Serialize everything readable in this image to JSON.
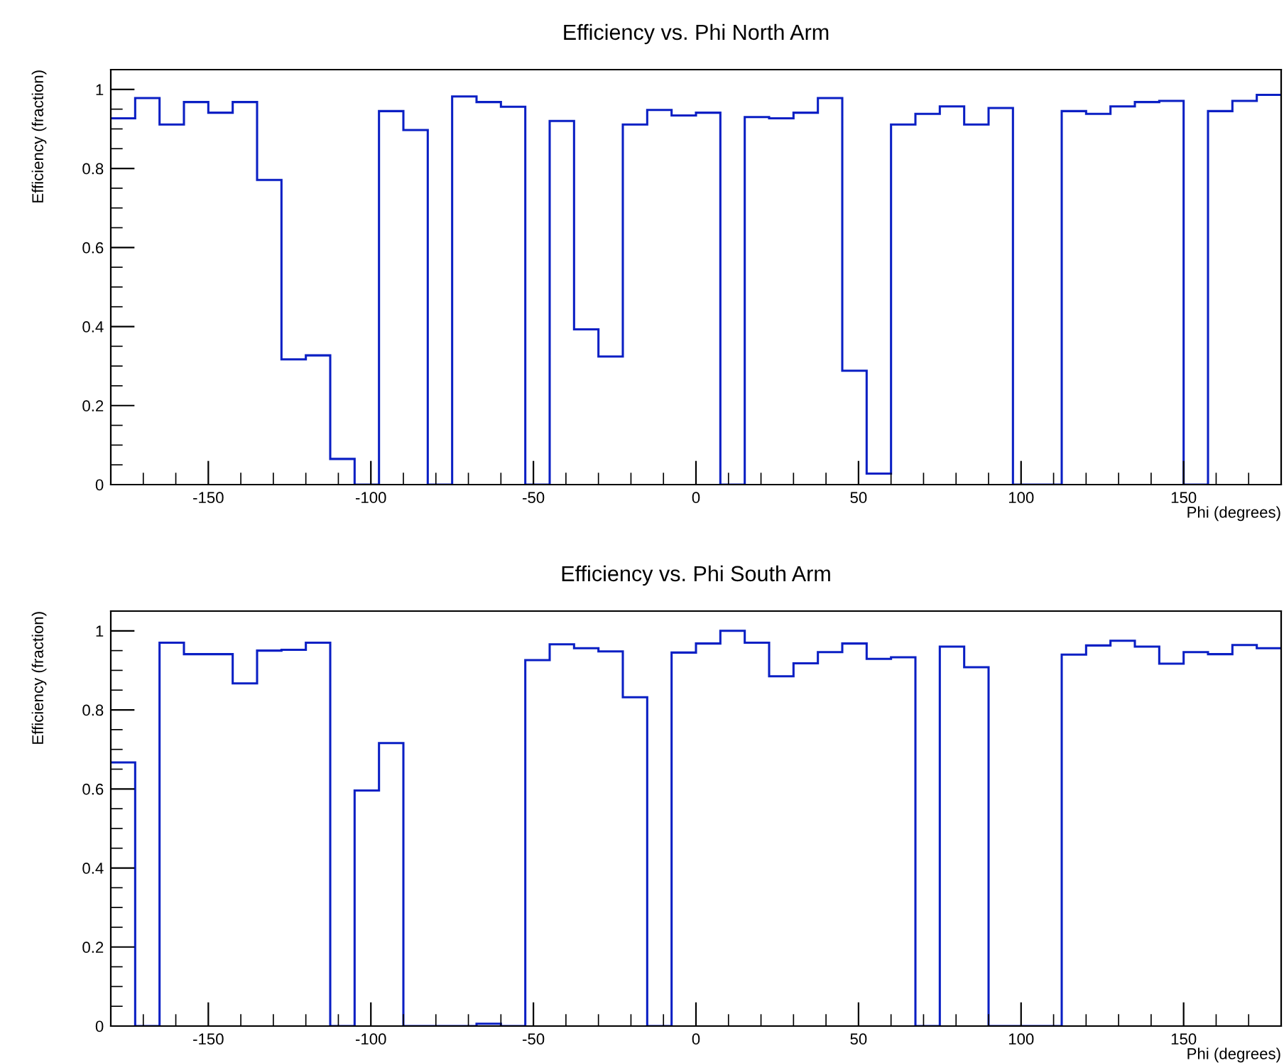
{
  "chart_data": [
    {
      "type": "histogram",
      "title": "Efficiency vs. Phi North Arm",
      "xlabel": "Phi (degrees)",
      "ylabel": "Efficiency (fraction)",
      "bins": [
        -180,
        -172.5,
        -165,
        -157.5,
        -150,
        -142.5,
        -135,
        -127.5,
        -120,
        -112.5,
        -105,
        -97.5,
        -90,
        -82.5,
        -75,
        -67.5,
        -60,
        -52.5,
        -45,
        -37.5,
        -30,
        -22.5,
        -15,
        -7.5,
        0,
        7.5,
        15,
        22.5,
        30,
        37.5,
        45,
        52.5,
        60,
        67.5,
        75,
        82.5,
        90,
        97.5,
        105,
        112.5,
        120,
        127.5,
        135,
        142.5,
        150,
        157.5,
        165,
        172.5,
        180
      ],
      "values": [
        0.927,
        0.978,
        0.911,
        0.968,
        0.941,
        0.968,
        0.771,
        0.317,
        0.327,
        0.065,
        0,
        0.945,
        0.897,
        0,
        0.982,
        0.968,
        0.956,
        0,
        0.92,
        0.393,
        0.324,
        0.911,
        0.948,
        0.934,
        0.941,
        0,
        0.93,
        0.927,
        0.941,
        0.978,
        0.288,
        0.028,
        0.911,
        0.938,
        0.957,
        0.911,
        0.953,
        0,
        0,
        0.945,
        0.938,
        0.957,
        0.968,
        0.971,
        0,
        0.945,
        0.971,
        0.986
      ],
      "color": "#0a1fc4",
      "xlim": [
        -180,
        180
      ],
      "ylim": [
        0,
        1.05
      ],
      "xticks": [
        -150,
        -100,
        -50,
        0,
        50,
        100,
        150
      ],
      "yticks": [
        0,
        0.2,
        0.4,
        0.6,
        0.8,
        1
      ]
    },
    {
      "type": "histogram",
      "title": "Efficiency vs. Phi South Arm",
      "xlabel": "Phi (degrees)",
      "ylabel": "Efficiency (fraction)",
      "bins": [
        -180,
        -172.5,
        -165,
        -157.5,
        -150,
        -142.5,
        -135,
        -127.5,
        -120,
        -112.5,
        -105,
        -97.5,
        -90,
        -82.5,
        -75,
        -67.5,
        -60,
        -52.5,
        -45,
        -37.5,
        -30,
        -22.5,
        -15,
        -7.5,
        0,
        7.5,
        15,
        22.5,
        30,
        37.5,
        45,
        52.5,
        60,
        67.5,
        75,
        82.5,
        90,
        97.5,
        105,
        112.5,
        120,
        127.5,
        135,
        142.5,
        150,
        157.5,
        165,
        172.5,
        180
      ],
      "values": [
        0.667,
        0,
        0.97,
        0.941,
        0.941,
        0.867,
        0.95,
        0.952,
        0.97,
        0,
        0.596,
        0.716,
        0,
        0,
        0,
        0.006,
        0,
        0.926,
        0.966,
        0.956,
        0.948,
        0.832,
        0,
        0.945,
        0.968,
        1.0,
        0.97,
        0.885,
        0.918,
        0.946,
        0.968,
        0.929,
        0.933,
        0,
        0.96,
        0.908,
        0,
        0,
        0,
        0.94,
        0.963,
        0.975,
        0.96,
        0.917,
        0.946,
        0.941,
        0.964,
        0.956
      ],
      "color": "#0a1fc4",
      "xlim": [
        -180,
        180
      ],
      "ylim": [
        0,
        1.05
      ],
      "xticks": [
        -150,
        -100,
        -50,
        0,
        50,
        100,
        150
      ],
      "yticks": [
        0,
        0.2,
        0.4,
        0.6,
        0.8,
        1
      ]
    }
  ]
}
